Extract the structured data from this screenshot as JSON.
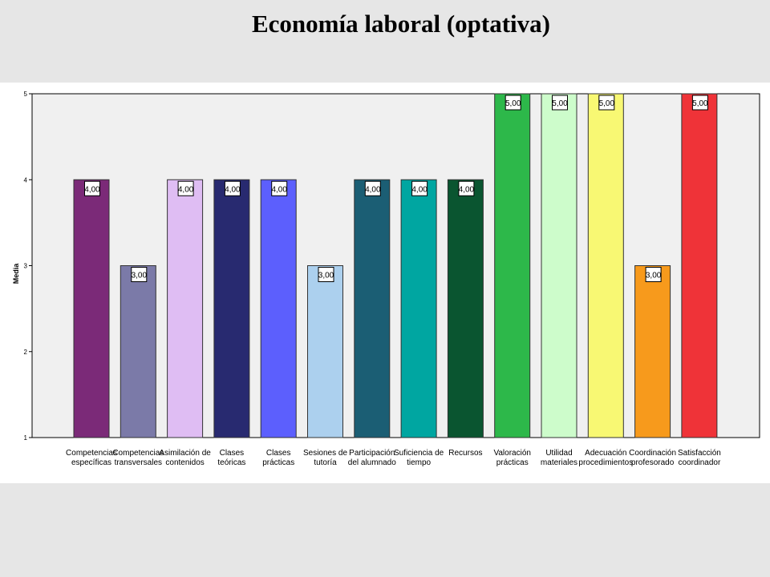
{
  "title": "Economía  laboral (optativa)",
  "chart_data": {
    "type": "bar",
    "title": "Economía  laboral (optativa)",
    "xlabel": "",
    "ylabel": "Media",
    "ylim": [
      1,
      5
    ],
    "yticks": [
      "1",
      "2",
      "3",
      "4",
      "5"
    ],
    "grid": false,
    "categories": [
      [
        "Competencias",
        "específicas"
      ],
      [
        "Competencias",
        "transversales"
      ],
      [
        "Asimilación de",
        "contenidos"
      ],
      [
        "Clases",
        "teóricas"
      ],
      [
        "Clases",
        "prácticas"
      ],
      [
        "Sesiones de",
        "tutoría"
      ],
      [
        "Participación",
        "del alumnado"
      ],
      [
        "Suficiencia de",
        "tiempo"
      ],
      [
        "Recursos"
      ],
      [
        "Valoración",
        "prácticas"
      ],
      [
        "Utilidad",
        "materiales"
      ],
      [
        "Adecuación",
        "procedimientos"
      ],
      [
        "Coordinación",
        "profesorado"
      ],
      [
        "Satisfacción",
        "coordinador"
      ]
    ],
    "values": [
      4,
      3,
      4,
      4,
      4,
      3,
      4,
      4,
      4,
      5,
      5,
      5,
      3,
      5
    ],
    "data_labels": [
      "4,00",
      "3,00",
      "4,00",
      "4,00",
      "4,00",
      "3,00",
      "4,00",
      "4,00",
      "4,00",
      "5,00",
      "5,00",
      "5,00",
      "3,00",
      "5,00"
    ],
    "colors": [
      "#7b2a78",
      "#7b7aa8",
      "#dfbdf3",
      "#282a70",
      "#5c5ffd",
      "#acd0ee",
      "#1b5e74",
      "#00a6a1",
      "#0a5530",
      "#2db84a",
      "#cdfccb",
      "#f8f873",
      "#f79a1c",
      "#ef3338"
    ],
    "plot_background": "#f0f0f0"
  }
}
